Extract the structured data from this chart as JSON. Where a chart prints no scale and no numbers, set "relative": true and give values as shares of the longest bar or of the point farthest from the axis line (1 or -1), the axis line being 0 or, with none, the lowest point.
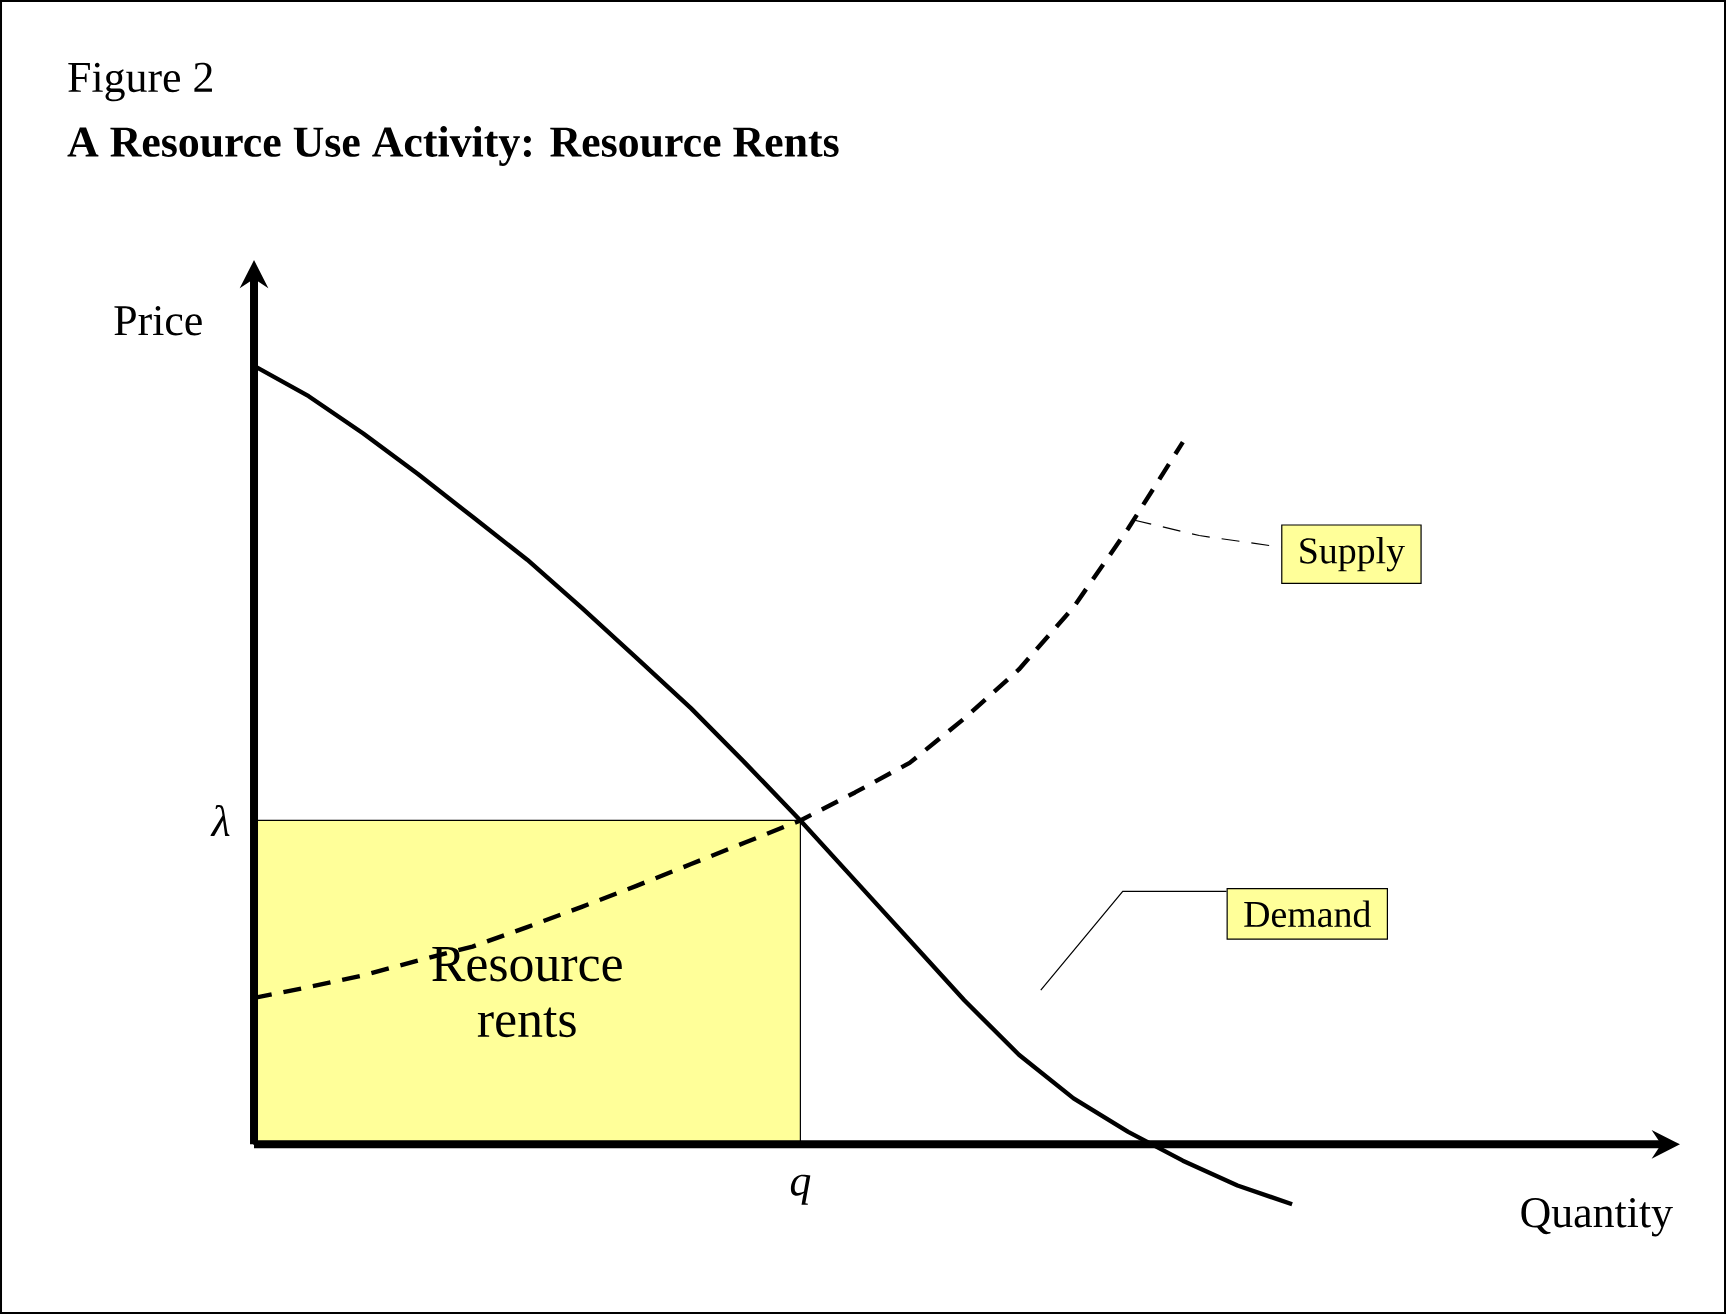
{
  "chart_data": {
    "type": "line",
    "relative": true,
    "title": "A Resource Use Activity: Resource Rents",
    "annotations": [
      "Figure 2",
      "λ",
      "q"
    ],
    "xlabel": "Quantity",
    "ylabel": "Price",
    "categories": [
      null,
      null,
      null,
      null,
      null,
      null,
      null,
      null,
      null,
      null,
      null,
      null,
      null,
      null,
      null,
      null,
      null,
      null,
      null,
      null
    ],
    "series": [
      {
        "name": "Resource rents",
        "type": "area",
        "color": "#ffff99",
        "values": [
          0.416,
          0.416,
          0.416,
          0.416,
          0.416,
          0.416,
          0.416,
          0.416,
          0.416,
          0.416,
          0.416,
          null,
          null,
          null,
          null,
          null,
          null,
          null,
          null,
          null
        ]
      },
      {
        "name": "Demand",
        "color": "#000000",
        "line_style": "solid",
        "values": [
          1.0,
          0.961,
          0.913,
          0.861,
          0.806,
          0.751,
          0.689,
          0.625,
          0.56,
          0.489,
          0.416,
          0.339,
          0.262,
          0.185,
          0.115,
          0.059,
          0.016,
          -0.021,
          -0.053,
          -0.077
        ]
      },
      {
        "name": "Supply",
        "color": "#000000",
        "line_style": "dashed",
        "values": [
          0.188,
          0.202,
          0.217,
          0.236,
          0.254,
          0.279,
          0.305,
          0.332,
          0.36,
          0.388,
          0.416,
          0.452,
          0.49,
          0.547,
          0.61,
          0.69,
          0.791,
          0.902,
          null,
          null
        ]
      }
    ]
  }
}
